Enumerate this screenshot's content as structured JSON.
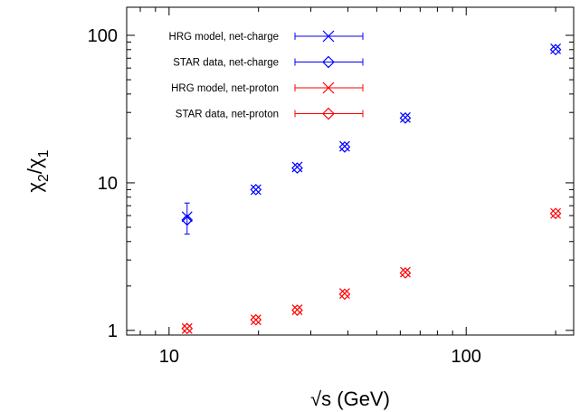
{
  "chart_data": {
    "type": "scatter",
    "title": "",
    "xlabel": "√s (GeV)",
    "ylabel_base": "χ",
    "ylabel_num_sub": "2",
    "ylabel_den_sub": "1",
    "xscale": "log",
    "yscale": "log",
    "xlim": [
      7.2,
      230
    ],
    "ylim": [
      0.93,
      155
    ],
    "x_ticks": [
      {
        "value": 10,
        "label": "10"
      },
      {
        "value": 100,
        "label": "100"
      }
    ],
    "y_ticks": [
      {
        "value": 1,
        "label": "1"
      },
      {
        "value": 10,
        "label": "10"
      },
      {
        "value": 100,
        "label": "100"
      }
    ],
    "grid": false,
    "legend_position": "top-left",
    "series": [
      {
        "name": "HRG model, net-charge",
        "marker": "cross",
        "color": "#0000ff",
        "points": [
          {
            "x": 11.5,
            "y": 5.9,
            "err": 1.4
          },
          {
            "x": 19.6,
            "y": 9.0,
            "err": 0
          },
          {
            "x": 27,
            "y": 12.8,
            "err": 0
          },
          {
            "x": 39,
            "y": 17.7,
            "err": 0
          },
          {
            "x": 62.4,
            "y": 27.7,
            "err": 0
          },
          {
            "x": 200,
            "y": 81,
            "err": 0
          }
        ]
      },
      {
        "name": "STAR data, net-charge",
        "marker": "diamond",
        "color": "#0000ff",
        "points": [
          {
            "x": 11.5,
            "y": 5.6,
            "err": 0
          },
          {
            "x": 19.6,
            "y": 9.0,
            "err": 0
          },
          {
            "x": 27,
            "y": 12.6,
            "err": 0
          },
          {
            "x": 39,
            "y": 17.5,
            "err": 0
          },
          {
            "x": 62.4,
            "y": 27.5,
            "err": 0
          },
          {
            "x": 200,
            "y": 80,
            "err": 0
          }
        ]
      },
      {
        "name": "HRG model, net-proton",
        "marker": "cross",
        "color": "#ff0000",
        "points": [
          {
            "x": 11.5,
            "y": 1.03,
            "err": 0
          },
          {
            "x": 19.6,
            "y": 1.18,
            "err": 0
          },
          {
            "x": 27,
            "y": 1.38,
            "err": 0
          },
          {
            "x": 39,
            "y": 1.78,
            "err": 0
          },
          {
            "x": 62.4,
            "y": 2.48,
            "err": 0
          },
          {
            "x": 200,
            "y": 6.2,
            "err": 0
          }
        ]
      },
      {
        "name": "STAR data, net-proton",
        "marker": "diamond",
        "color": "#ff0000",
        "points": [
          {
            "x": 11.5,
            "y": 1.03,
            "err": 0
          },
          {
            "x": 19.6,
            "y": 1.18,
            "err": 0
          },
          {
            "x": 27,
            "y": 1.37,
            "err": 0
          },
          {
            "x": 39,
            "y": 1.76,
            "err": 0
          },
          {
            "x": 62.4,
            "y": 2.45,
            "err": 0
          },
          {
            "x": 200,
            "y": 6.2,
            "err": 0
          }
        ]
      }
    ]
  }
}
